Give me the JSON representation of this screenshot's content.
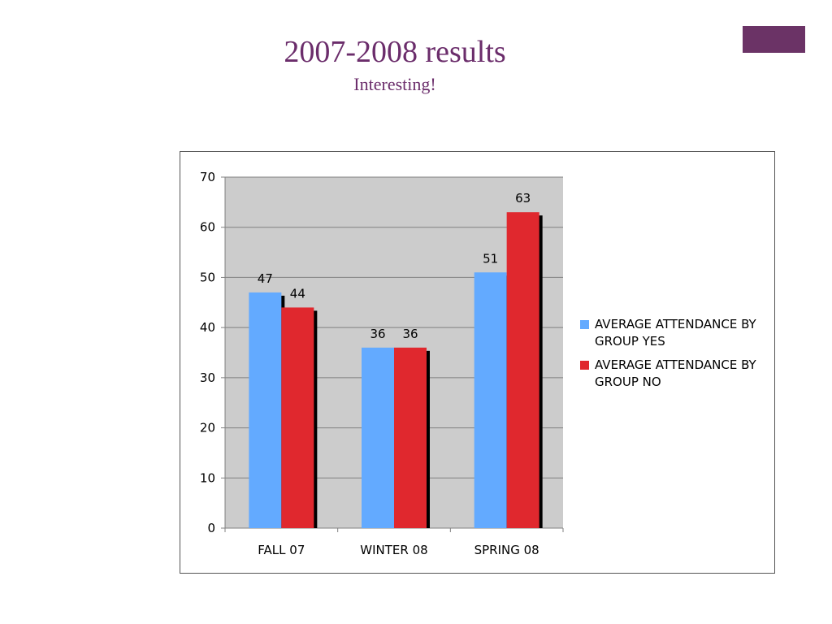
{
  "slide": {
    "title": "2007-2008 results",
    "subtitle": "Interesting!",
    "accent_color": "#6b3366",
    "title_color": "#6b2d6b"
  },
  "chart_data": {
    "type": "bar",
    "categories": [
      "FALL 07",
      "WINTER 08",
      "SPRING 08"
    ],
    "series": [
      {
        "name": "AVERAGE ATTENDANCE BY GROUP YES",
        "values": [
          47,
          36,
          51
        ],
        "color": "#63aaff"
      },
      {
        "name": "AVERAGE ATTENDANCE BY GROUP NO",
        "values": [
          44,
          36,
          63
        ],
        "color": "#e0282e"
      }
    ],
    "ylim": [
      0,
      70
    ],
    "yticks": [
      0,
      10,
      20,
      30,
      40,
      50,
      60,
      70
    ],
    "grid": true,
    "plot_background": "#cccccc",
    "legend_position": "right"
  }
}
